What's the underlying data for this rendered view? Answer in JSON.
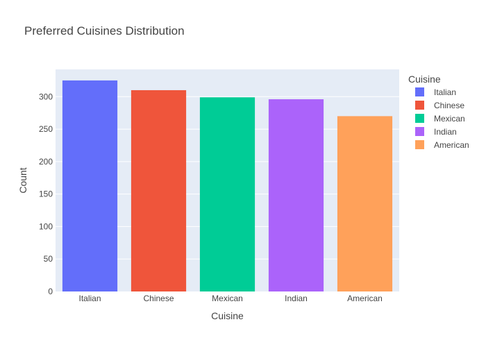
{
  "chart_data": {
    "type": "bar",
    "title": "Preferred Cuisines Distribution",
    "xlabel": "Cuisine",
    "ylabel": "Count",
    "categories": [
      "Italian",
      "Chinese",
      "Mexican",
      "Indian",
      "American"
    ],
    "values": [
      325,
      310,
      299,
      296,
      270
    ],
    "colors": [
      "#636efa",
      "#ef553b",
      "#00cc96",
      "#ab63fa",
      "#ffa15a"
    ],
    "ylim": [
      0,
      342
    ],
    "yticks": [
      0,
      50,
      100,
      150,
      200,
      250,
      300
    ],
    "grid": true,
    "legend": {
      "title": "Cuisine",
      "position": "right",
      "entries": [
        "Italian",
        "Chinese",
        "Mexican",
        "Indian",
        "American"
      ]
    },
    "plot_background": "#e5ecf6"
  }
}
